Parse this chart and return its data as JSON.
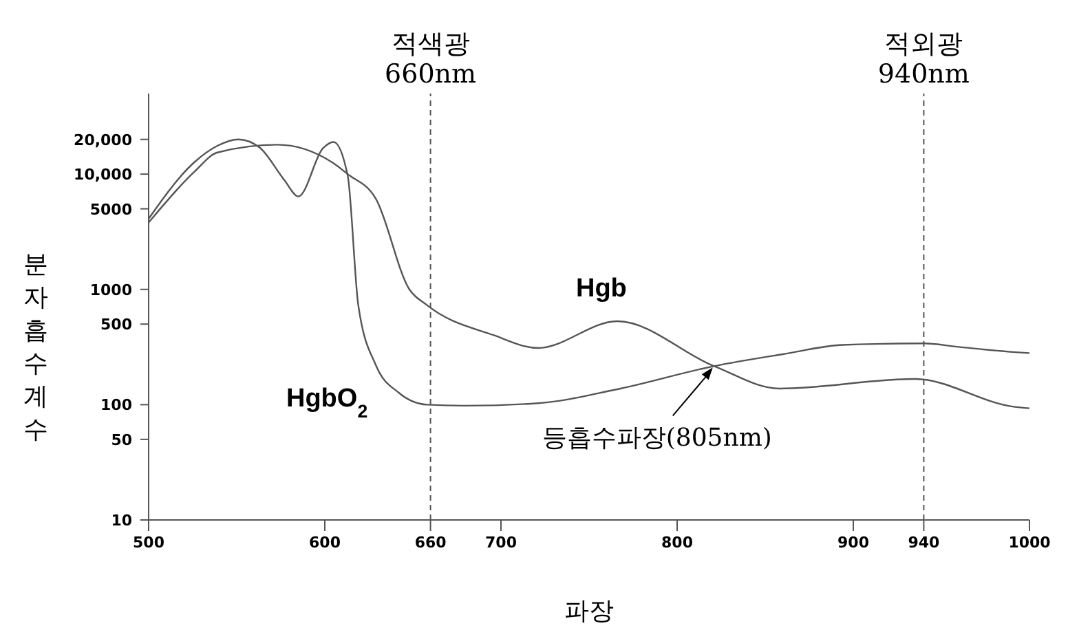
{
  "chart_data": {
    "type": "line",
    "xlabel": "파장",
    "ylabel": "분자흡수계수",
    "log": "y",
    "marker": "none",
    "line_style": "solid",
    "xlim": [
      500,
      1000
    ],
    "xticks": [
      500,
      600,
      660,
      700,
      800,
      900,
      940,
      1000
    ],
    "ylim": [
      10,
      50000
    ],
    "yticks": [
      10,
      50,
      100,
      500,
      1000,
      5000,
      {
        "value": 10000,
        "label": "10,000"
      },
      {
        "value": 20000,
        "label": "20,000"
      }
    ],
    "series": [
      {
        "name": "Hgb",
        "color": "#555555",
        "x": [
          500,
          526,
          539,
          573,
          604,
          613,
          629,
          648,
          658,
          696,
          721,
          766,
          821,
          858,
          935,
          991,
          1000
        ],
        "values": [
          3800,
          10500,
          15400,
          18000,
          12700,
          10000,
          6100,
          1000,
          730,
          400,
          310,
          530,
          216,
          138,
          167,
          96,
          93
        ]
      },
      {
        "name": "HgbO$_{2}$",
        "color": "#555555",
        "x": [
          500,
          526,
          539,
          551,
          563,
          577,
          585,
          599,
          605,
          613,
          619,
          629,
          642,
          658,
          679,
          721,
          765,
          821,
          860,
          894,
          940,
          959,
          991,
          1000
        ],
        "values": [
          4100,
          12700,
          17600,
          20000,
          17000,
          8900,
          6400,
          16800,
          19000,
          9700,
          730,
          220,
          127,
          100,
          98,
          103,
          135,
          216,
          274,
          330,
          340,
          318,
          286,
          280
        ]
      }
    ],
    "ref_lines": [
      {
        "axis": "x",
        "value": 660,
        "label": "적색광 660nm",
        "line_style": "dashed"
      },
      {
        "axis": "x",
        "value": 940,
        "label": "적외광 940nm",
        "line_style": "dashed"
      }
    ],
    "annotations": [
      {
        "text": "등흡수파장(805nm)",
        "x": 821,
        "y": 216
      }
    ]
  }
}
